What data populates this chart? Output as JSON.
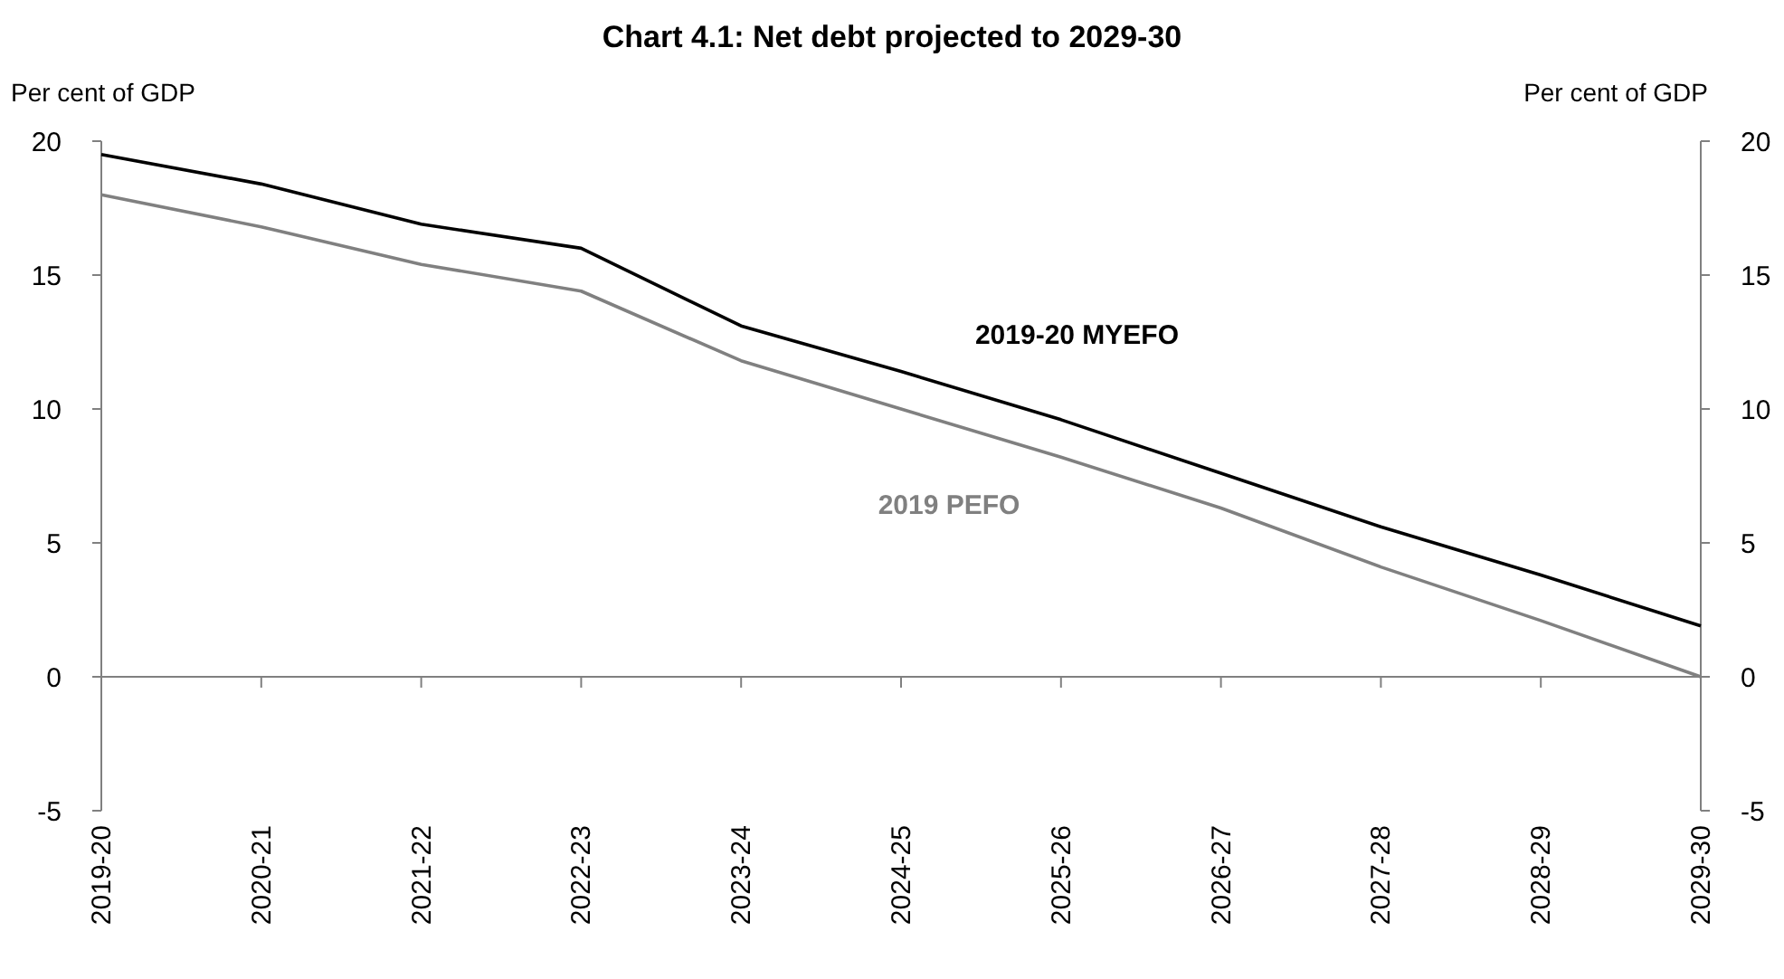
{
  "chart_data": {
    "type": "line",
    "title": "Chart 4.1: Net debt projected to 2029-30",
    "ylabel": "Per cent of GDP",
    "y2label": "Per cent of GDP",
    "categories": [
      "2019-20",
      "2020-21",
      "2021-22",
      "2022-23",
      "2023-24",
      "2024-25",
      "2025-26",
      "2026-27",
      "2027-28",
      "2028-29",
      "2029-30"
    ],
    "series": [
      {
        "name": "2019-20 MYEFO",
        "color": "#000000",
        "values": [
          19.5,
          18.4,
          16.9,
          16.0,
          13.1,
          11.4,
          9.6,
          7.6,
          5.6,
          3.8,
          1.9
        ]
      },
      {
        "name": "2019 PEFO",
        "color": "#808080",
        "values": [
          18.0,
          16.8,
          15.4,
          14.4,
          11.8,
          10.0,
          8.2,
          6.3,
          4.1,
          2.1,
          0.0
        ]
      }
    ],
    "ylim": [
      -5,
      20
    ],
    "yticks": [
      -5,
      0,
      5,
      10,
      15,
      20
    ],
    "y2lim": [
      -5,
      20
    ],
    "y2ticks": [
      -5,
      0,
      5,
      10,
      15,
      20
    ],
    "marker": "none",
    "line_style": "solid"
  }
}
